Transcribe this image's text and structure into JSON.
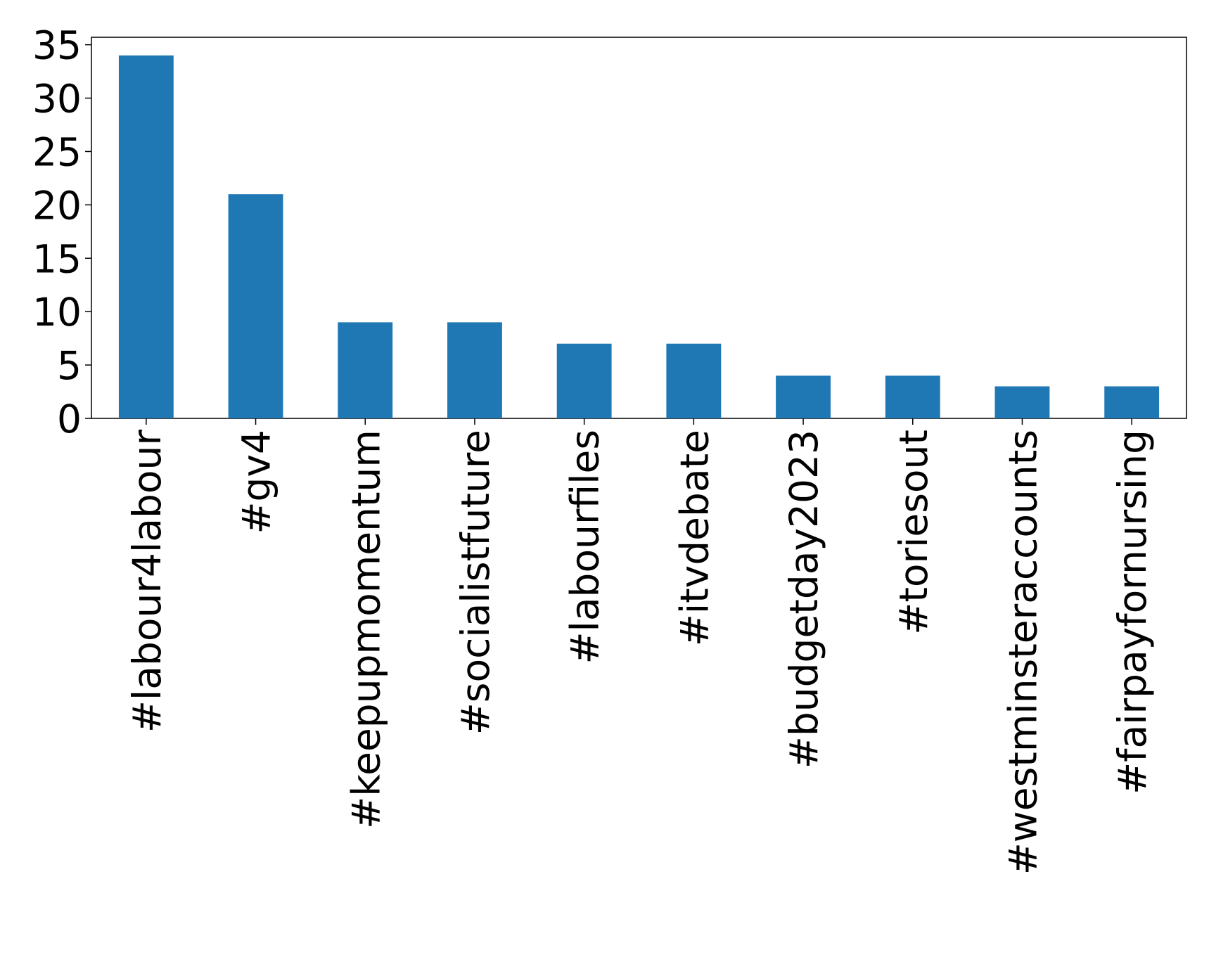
{
  "chart_data": {
    "type": "bar",
    "categories": [
      "#labour4labour",
      "#gv4",
      "#keepupmomentum",
      "#socialistfuture",
      "#labourfiles",
      "#itvdebate",
      "#budgetday2023",
      "#toriesout",
      "#westminsteraccounts",
      "#fairpayfornursing"
    ],
    "values": [
      34,
      21,
      9,
      9,
      7,
      7,
      4,
      4,
      3,
      3
    ],
    "color": "#1f77b4",
    "ylim": [
      0,
      35.7
    ],
    "yticks": [
      0,
      5,
      10,
      15,
      20,
      25,
      30,
      35
    ],
    "grid": false
  }
}
